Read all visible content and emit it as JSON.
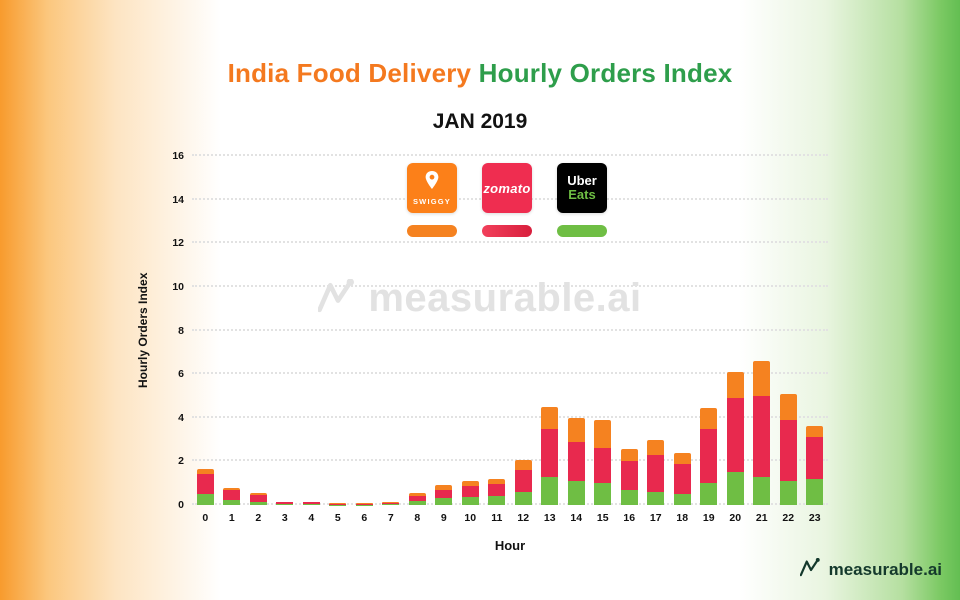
{
  "title": {
    "part1": "India Food Delivery",
    "part2": "Hourly Orders Index"
  },
  "subtitle": "JAN 2019",
  "watermark": "measurable.ai",
  "footer": {
    "brand": "measurable.ai"
  },
  "legend": [
    {
      "name": "Swiggy",
      "logo_text": "SWIGGY",
      "color": "#F58220"
    },
    {
      "name": "Zomato",
      "logo_text": "zomato",
      "color": "#E8294E"
    },
    {
      "name": "Uber Eats",
      "line1": "Uber",
      "line2": "Eats",
      "color": "#6FBE44"
    }
  ],
  "chart_data": {
    "type": "bar",
    "stacked": true,
    "title": "India Food Delivery Hourly Orders Index",
    "subtitle": "JAN 2019",
    "xlabel": "Hour",
    "ylabel": "Hourly Orders Index",
    "ylim": [
      0,
      16
    ],
    "yticks": [
      0,
      2,
      4,
      6,
      8,
      10,
      12,
      14,
      16
    ],
    "x": [
      0,
      1,
      2,
      3,
      4,
      5,
      6,
      7,
      8,
      9,
      10,
      11,
      12,
      13,
      14,
      15,
      16,
      17,
      18,
      19,
      20,
      21,
      22,
      23
    ],
    "series": [
      {
        "name": "Uber Eats",
        "color": "#6FBE44",
        "values": [
          0.5,
          0.25,
          0.15,
          0.05,
          0.05,
          0.02,
          0.02,
          0.04,
          0.18,
          0.3,
          0.35,
          0.4,
          0.6,
          1.3,
          1.1,
          1.0,
          0.7,
          0.6,
          0.5,
          1.0,
          1.5,
          1.3,
          1.1,
          1.2
        ]
      },
      {
        "name": "Zomato",
        "color": "#E8294E",
        "values": [
          0.9,
          0.45,
          0.3,
          0.08,
          0.08,
          0.04,
          0.04,
          0.05,
          0.25,
          0.4,
          0.5,
          0.55,
          1.0,
          2.2,
          1.8,
          1.6,
          1.3,
          1.7,
          1.4,
          2.5,
          3.4,
          3.7,
          2.8,
          1.9
        ]
      },
      {
        "name": "Swiggy",
        "color": "#F58220",
        "values": [
          0.25,
          0.1,
          0.08,
          0.03,
          0.03,
          0.02,
          0.02,
          0.03,
          0.1,
          0.2,
          0.25,
          0.25,
          0.45,
          1.0,
          1.1,
          1.3,
          0.55,
          0.7,
          0.5,
          0.95,
          1.2,
          1.6,
          1.2,
          0.5
        ]
      }
    ]
  }
}
